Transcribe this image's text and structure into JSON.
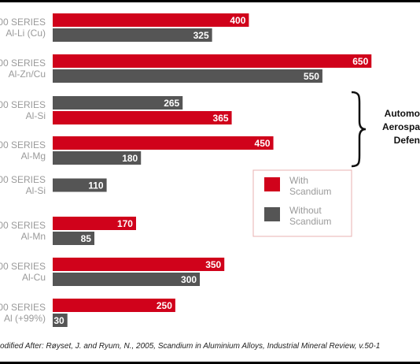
{
  "chart_data": {
    "type": "bar",
    "orientation": "horizontal",
    "categories": [
      [
        "00 SERIES",
        "Al-Li (Cu)"
      ],
      [
        "00 SERIES",
        "Al-Zn/Cu"
      ],
      [
        "00 SERIES",
        "Al-Si"
      ],
      [
        "00 SERIES",
        "Al-Mg"
      ],
      [
        "00 SERIES",
        "Al-Si"
      ],
      [
        "00 SERIES",
        "Al-Mn"
      ],
      [
        "00 SERIES",
        "Al-Cu"
      ],
      [
        "000 SERIES",
        "Al (+99%)"
      ]
    ],
    "series": [
      {
        "name": "With Scandium",
        "legend_lines": [
          "With",
          "Scandium"
        ],
        "color": "#d0021b",
        "values": [
          400,
          650,
          365,
          450,
          null,
          170,
          350,
          250
        ]
      },
      {
        "name": "Without Scandium",
        "legend_lines": [
          "Without",
          "Scandium"
        ],
        "color": "#555555",
        "values": [
          325,
          550,
          265,
          180,
          110,
          85,
          300,
          30
        ]
      }
    ],
    "order_within_group": [
      [
        "With Scandium",
        "Without Scandium"
      ],
      [
        "With Scandium",
        "Without Scandium"
      ],
      [
        "Without Scandium",
        "With Scandium"
      ],
      [
        "With Scandium",
        "Without Scandium"
      ],
      [
        "Without Scandium"
      ],
      [
        "With Scandium",
        "Without Scandium"
      ],
      [
        "With Scandium",
        "Without Scandium"
      ],
      [
        "With Scandium",
        "Without Scandium"
      ]
    ],
    "annotation": {
      "lines": [
        "Automo",
        "Aerospa",
        "Defen"
      ],
      "brace_groups": [
        2,
        3
      ]
    },
    "legend_position": "right",
    "grid": false
  },
  "source": "odified After: Røyset, J. and Ryum, N., 2005, Scandium in Aluminium Alloys, Industrial Mineral Review, v.50-1"
}
